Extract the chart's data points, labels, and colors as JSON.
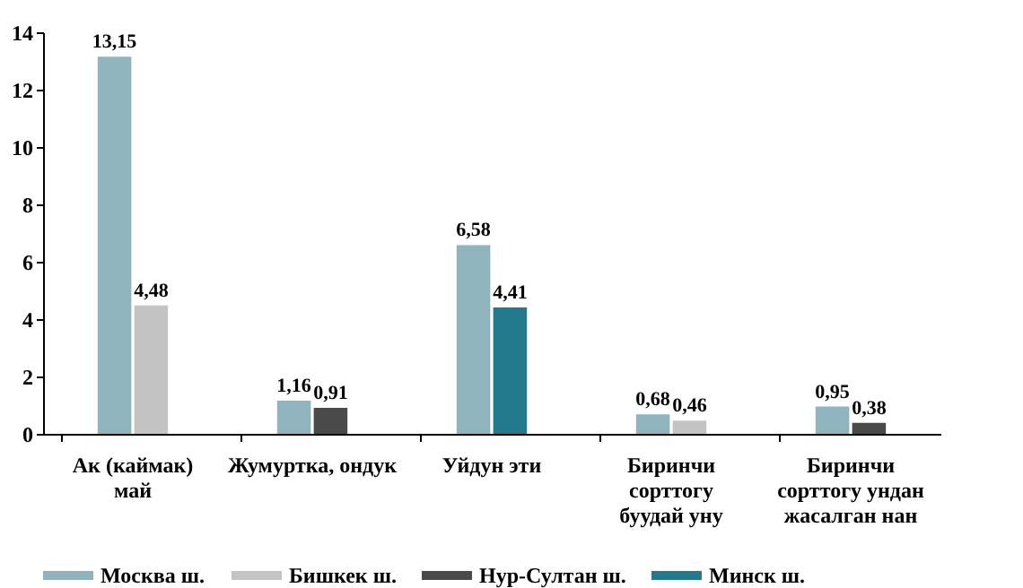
{
  "chart_data": {
    "type": "bar",
    "categories": [
      "Ак (каймак)\nмай",
      "Жумуртка, ондук",
      "Уйдун эти",
      "Биринчи\nсорттогу\nбуудай уну",
      "Биринчи\nсорттогу ундан\nжасалган нан"
    ],
    "series": [
      {
        "name": "Москва ш.",
        "color": "#8fb4be",
        "values": [
          13.15,
          1.16,
          6.58,
          0.68,
          0.95
        ],
        "value_labels": [
          "13,15",
          "1,16",
          "6,58",
          "0,68",
          "0,95"
        ]
      },
      {
        "name": "Бишкек ш.",
        "color": "#c4c4c4",
        "values": [
          4.48,
          null,
          null,
          0.46,
          null
        ],
        "value_labels": [
          "4,48",
          null,
          null,
          "0,46",
          null
        ]
      },
      {
        "name": "Нур-Султан ш.",
        "color": "#4a4a4a",
        "values": [
          null,
          0.91,
          null,
          null,
          0.38
        ],
        "value_labels": [
          null,
          "0,91",
          null,
          null,
          "0,38"
        ]
      },
      {
        "name": "Минск ш.",
        "color": "#237a8c",
        "values": [
          null,
          null,
          4.41,
          null,
          null
        ],
        "value_labels": [
          null,
          null,
          "4,41",
          null,
          null
        ]
      }
    ],
    "ylim": [
      0,
      14
    ],
    "yticks": [
      0,
      2,
      4,
      6,
      8,
      10,
      12,
      14
    ],
    "grid": false,
    "legend": "bottom"
  }
}
